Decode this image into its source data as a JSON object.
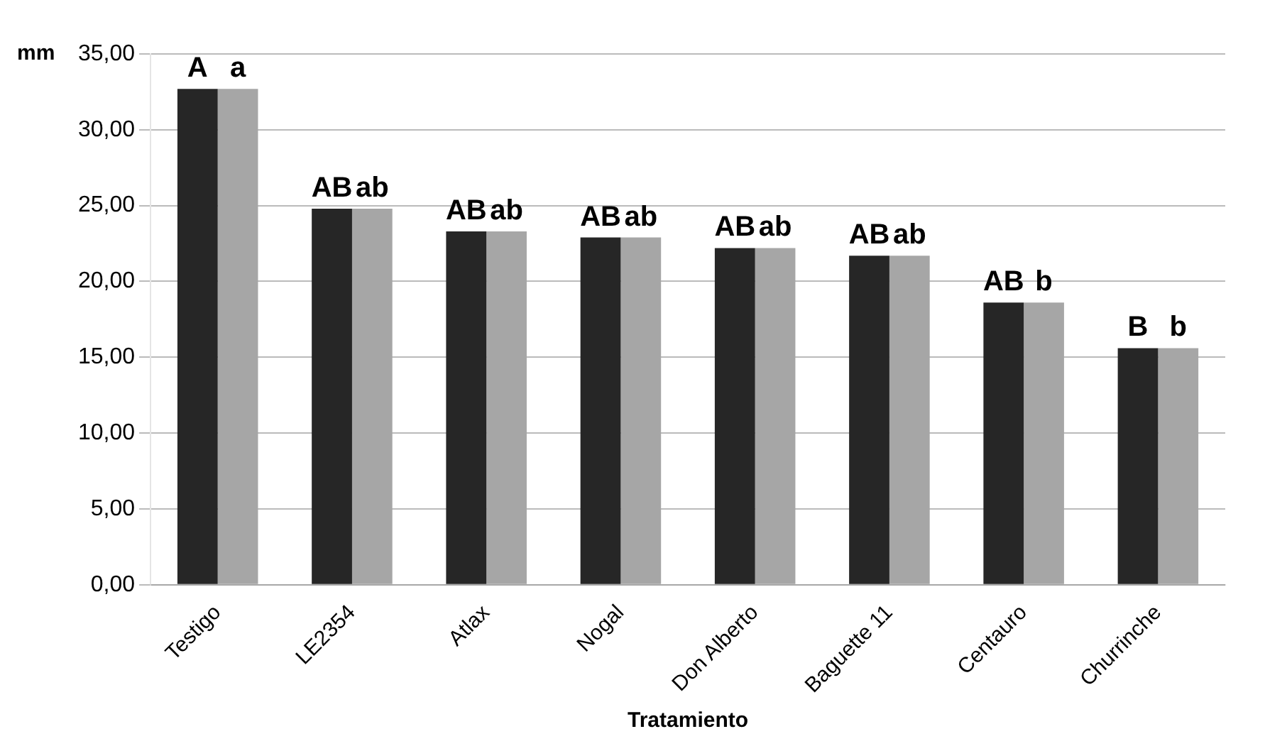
{
  "chart_data": {
    "type": "bar",
    "xlabel": "Tratamiento",
    "ylabel": "mm",
    "categories": [
      "Testigo",
      "LE2354",
      "Atlax",
      "Nogal",
      "Don Alberto",
      "Baguette 11",
      "Centauro",
      "Churrinche"
    ],
    "series": [
      {
        "color": "#262626",
        "values": [
          32.7,
          24.8,
          23.3,
          22.9,
          22.2,
          21.7,
          18.6,
          15.6
        ]
      },
      {
        "color": "#a6a6a6",
        "values": [
          32.7,
          24.8,
          23.3,
          22.9,
          22.2,
          21.7,
          18.6,
          15.6
        ]
      }
    ],
    "ylim": [
      0,
      35
    ],
    "yticks": [
      {
        "value": 0,
        "label": "0,00"
      },
      {
        "value": 5,
        "label": "5,00"
      },
      {
        "value": 10,
        "label": "10,00"
      },
      {
        "value": 15,
        "label": "15,00"
      },
      {
        "value": 20,
        "label": "20,00"
      },
      {
        "value": 25,
        "label": "25,00"
      },
      {
        "value": 30,
        "label": "30,00"
      },
      {
        "value": 35,
        "label": "35,00"
      }
    ],
    "grid": "y",
    "legend": false,
    "annotations": [
      {
        "text": "A",
        "x": "Testigo",
        "y": 32.7
      },
      {
        "text": "a",
        "x": "Testigo",
        "y": 32.7
      },
      {
        "text": "AB",
        "x": "LE2354",
        "y": 24.8
      },
      {
        "text": "ab",
        "x": "LE2354",
        "y": 24.8
      },
      {
        "text": "AB",
        "x": "Atlax",
        "y": 23.3
      },
      {
        "text": "ab",
        "x": "Atlax",
        "y": 23.3
      },
      {
        "text": "AB",
        "x": "Nogal",
        "y": 22.9
      },
      {
        "text": "ab",
        "x": "Nogal",
        "y": 22.9
      },
      {
        "text": "AB",
        "x": "Don Alberto",
        "y": 22.2
      },
      {
        "text": "ab",
        "x": "Don Alberto",
        "y": 22.2
      },
      {
        "text": "AB",
        "x": "Baguette 11",
        "y": 21.7
      },
      {
        "text": "ab",
        "x": "Baguette 11",
        "y": 21.7
      },
      {
        "text": "AB",
        "x": "Centauro",
        "y": 18.6
      },
      {
        "text": "b",
        "x": "Centauro",
        "y": 18.6
      },
      {
        "text": "B",
        "x": "Churrinche",
        "y": 15.6
      },
      {
        "text": "b",
        "x": "Churrinche",
        "y": 15.6
      }
    ]
  }
}
